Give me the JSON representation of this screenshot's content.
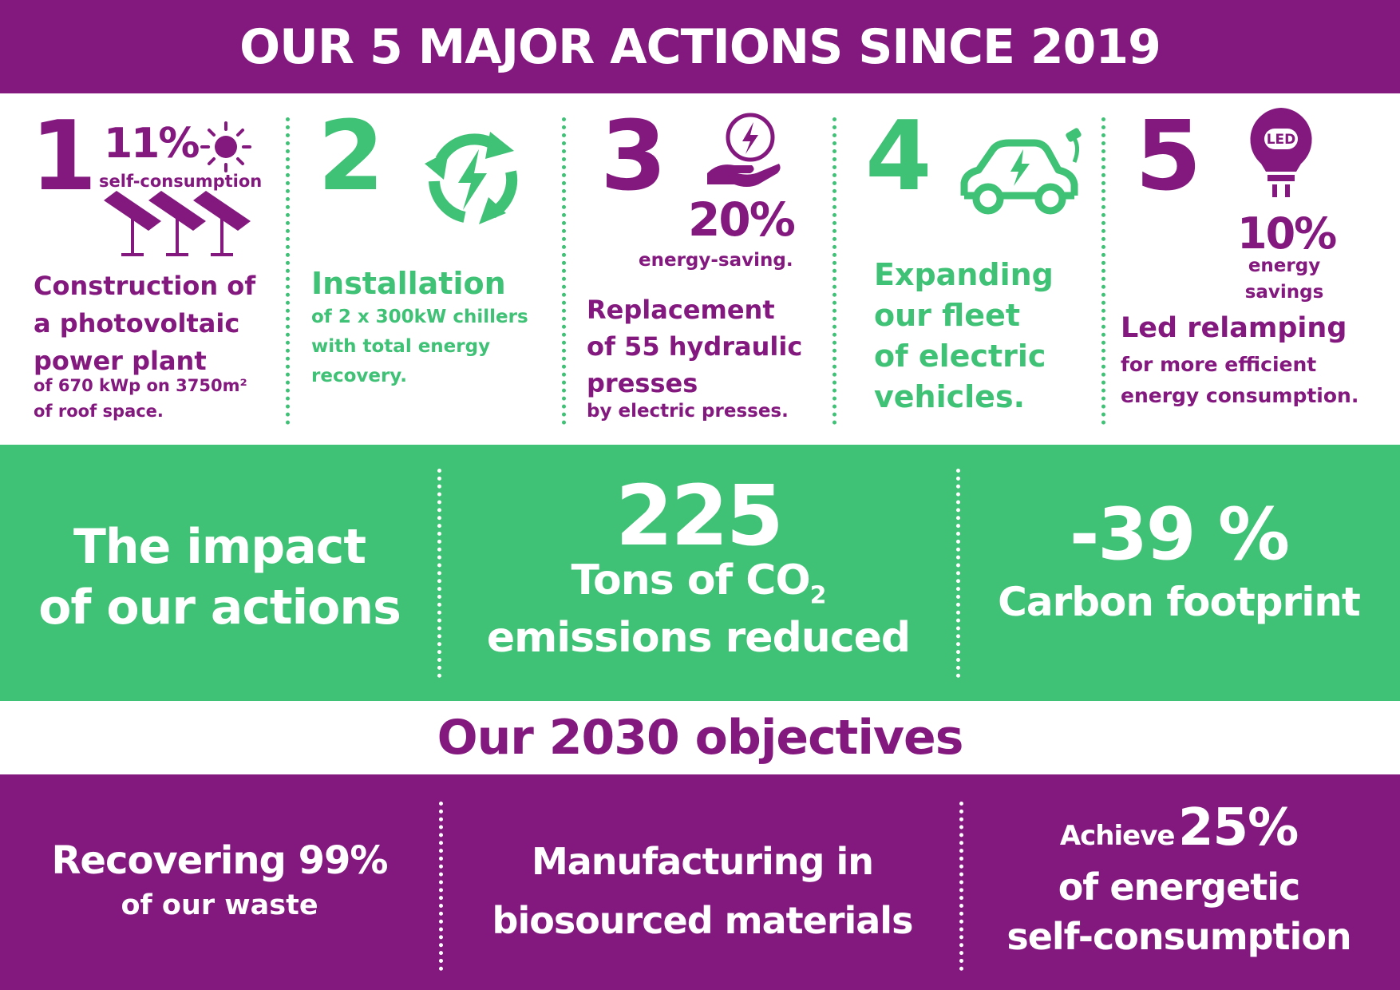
{
  "header": {
    "title": "OUR 5 MAJOR ACTIONS SINCE 2019"
  },
  "actions": [
    {
      "number": "1",
      "stat": "11%",
      "stat_label": "self-consumption",
      "title_lines": [
        "Construction of",
        "a photovoltaic",
        "power plant"
      ],
      "detail_lines": [
        "of 670 kWp on 3750m²",
        "of roof space."
      ],
      "icons": [
        "sun-icon",
        "solar-panels-icon"
      ],
      "color": "#83197f"
    },
    {
      "number": "2",
      "title_lines": [
        "Installation"
      ],
      "detail_lines": [
        "of 2 x 300kW chillers",
        "with total energy",
        "recovery."
      ],
      "icons": [
        "energy-recycle-icon"
      ],
      "color": "#3fc176"
    },
    {
      "number": "3",
      "stat": "20%",
      "stat_label": "energy-saving.",
      "title_lines": [
        "Replacement",
        "of 55 hydraulic",
        "presses"
      ],
      "detail_lines": [
        "by electric presses."
      ],
      "icons": [
        "hand-energy-icon"
      ],
      "color": "#83197f"
    },
    {
      "number": "4",
      "title_lines": [
        "Expanding",
        "our fleet",
        "of electric",
        "vehicles."
      ],
      "icons": [
        "electric-car-icon"
      ],
      "color": "#3fc176"
    },
    {
      "number": "5",
      "stat": "10%",
      "stat_label_lines": [
        "energy",
        "savings"
      ],
      "icon_text": "LED",
      "title_lines": [
        "Led relamping"
      ],
      "detail_lines": [
        "for more efficient",
        "energy consumption."
      ],
      "icons": [
        "led-bulb-icon"
      ],
      "color": "#83197f"
    }
  ],
  "impact": {
    "heading_lines": [
      "The impact",
      "of our actions"
    ],
    "co2": {
      "value": "225",
      "line1": "Tons of CO",
      "subscript": "2",
      "line2": "emissions reduced"
    },
    "carbon": {
      "value": "-39 %",
      "label": "Carbon footprint"
    }
  },
  "objectives": {
    "title": "Our 2030 objectives",
    "items": [
      {
        "main": "Recovering 99%",
        "sub": "of our waste"
      },
      {
        "lines": [
          "Manufacturing in",
          "biosourced materials"
        ]
      },
      {
        "prefix": "Achieve",
        "value": "25%",
        "lines": [
          "of energetic",
          "self-consumption"
        ]
      }
    ]
  },
  "colors": {
    "purple": "#83197f",
    "green": "#3fc176",
    "white": "#ffffff"
  }
}
